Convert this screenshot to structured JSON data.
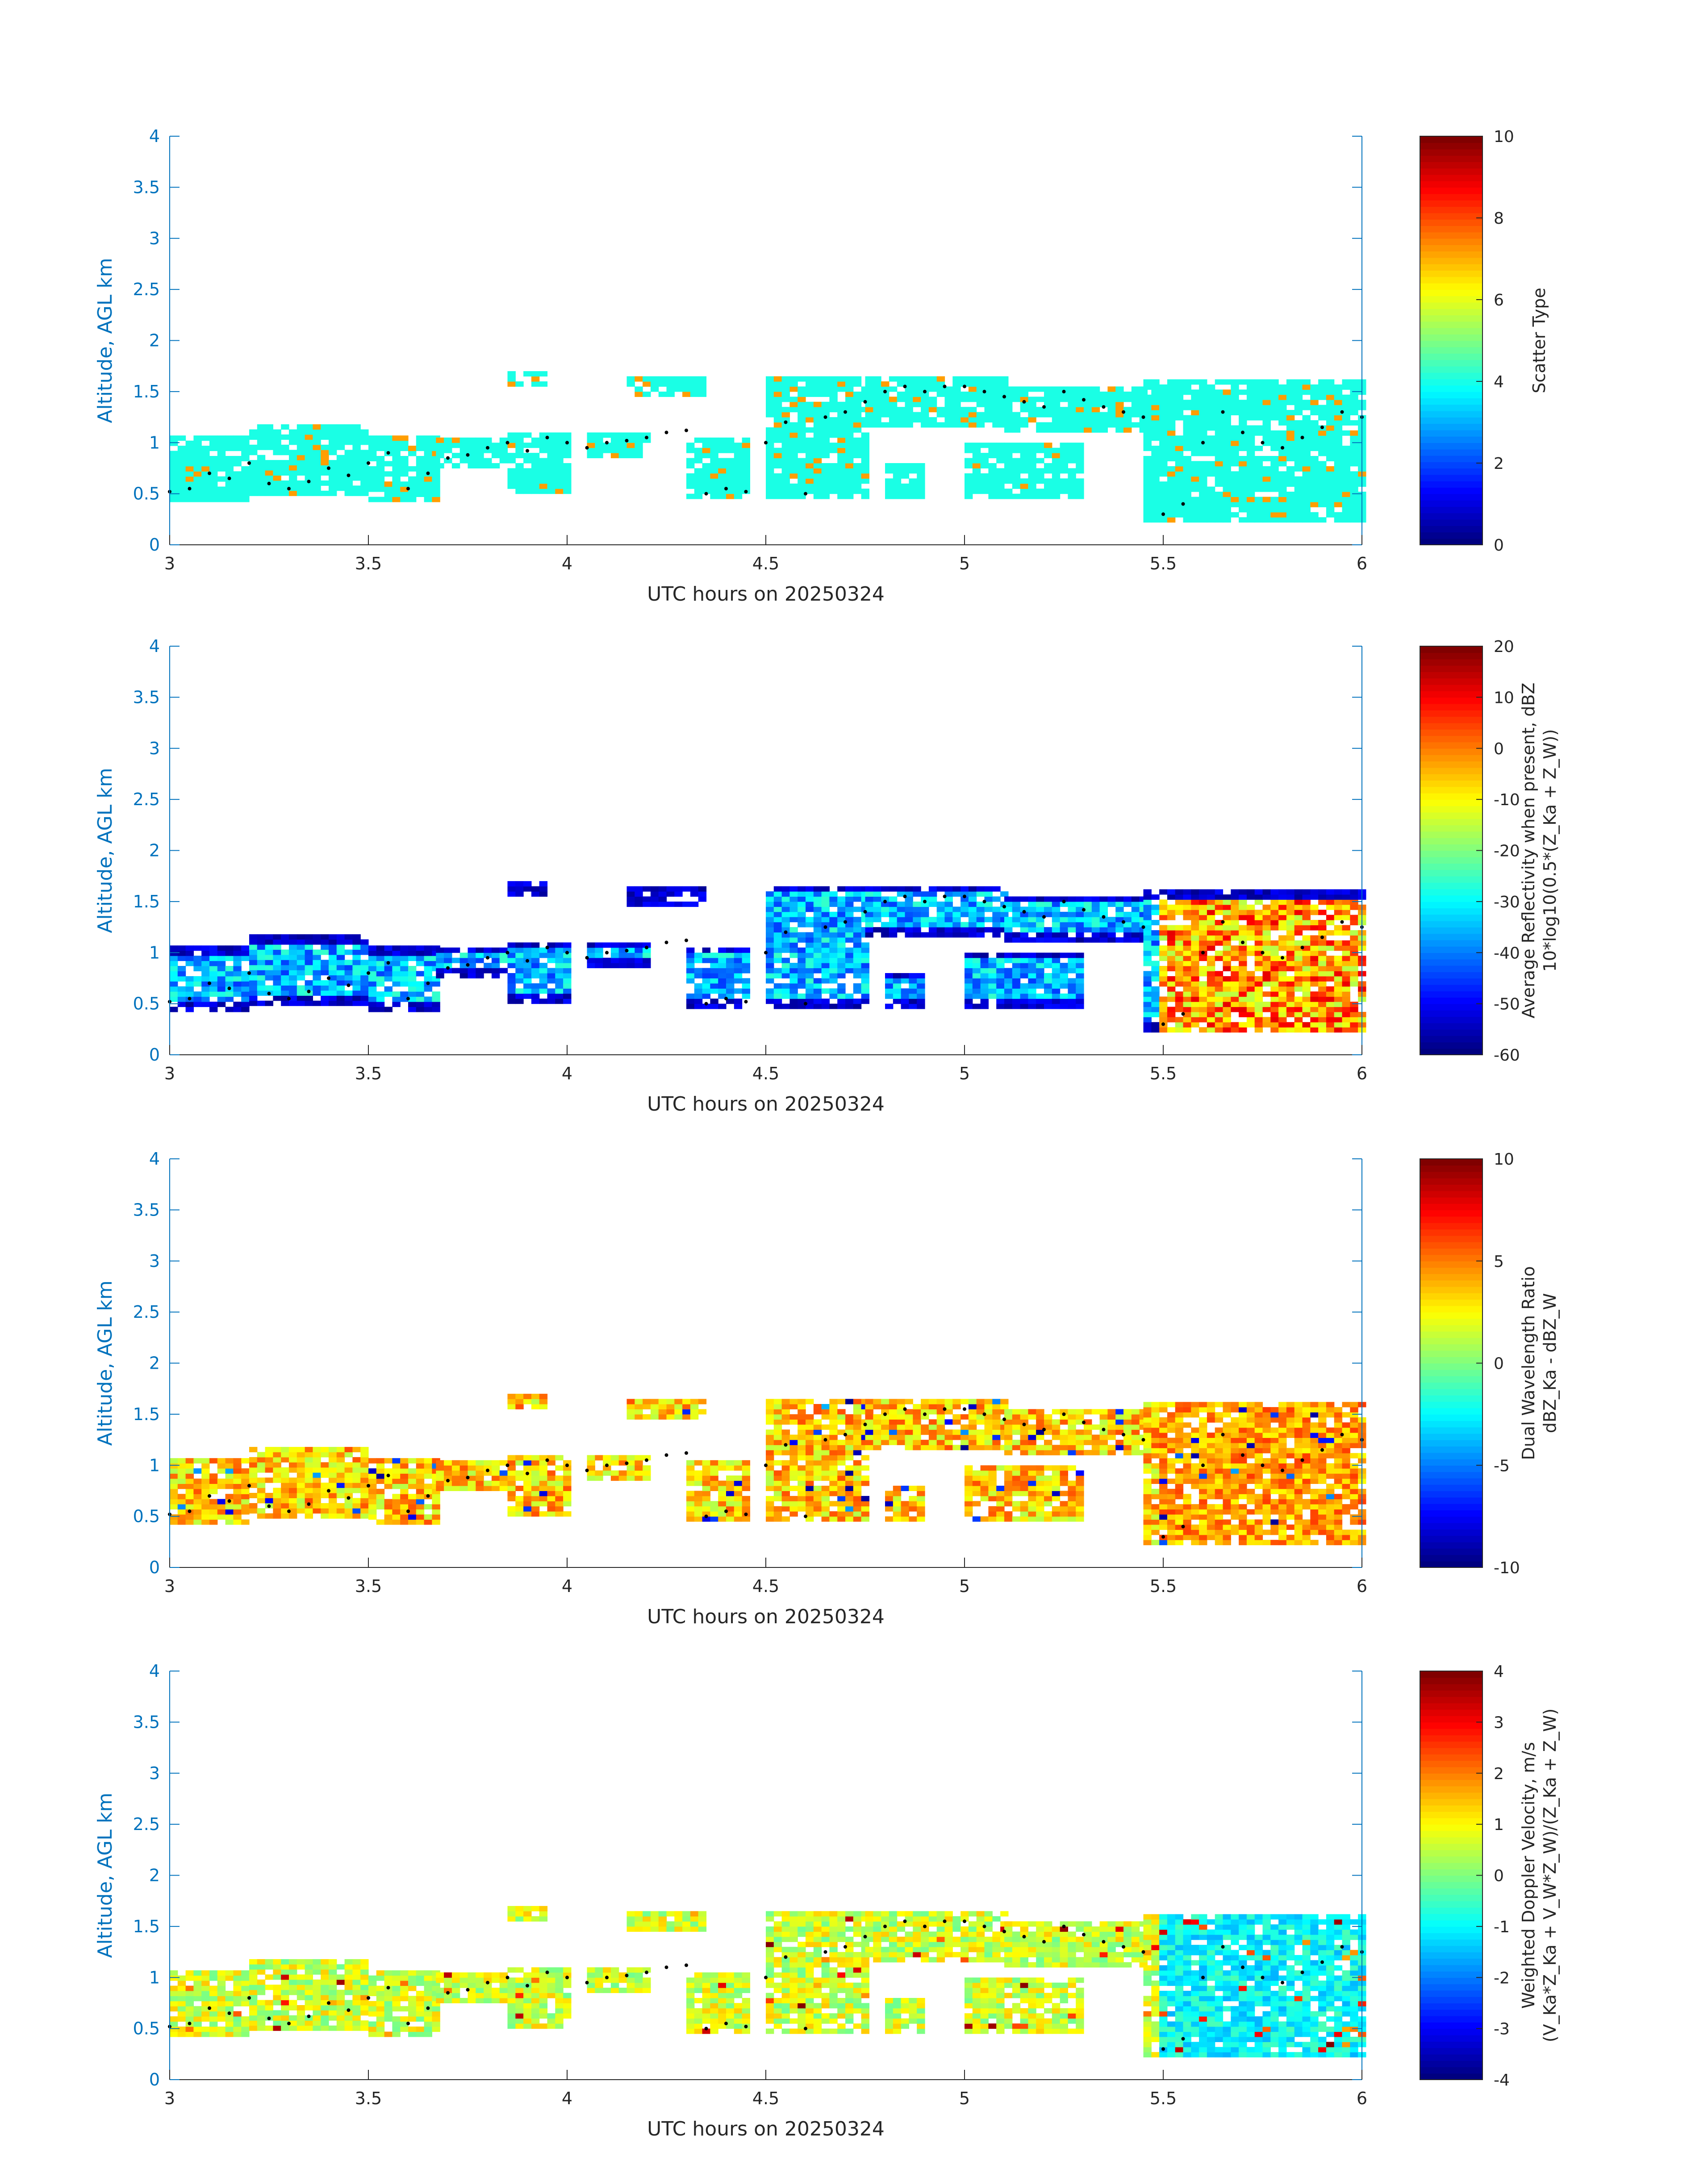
{
  "chart_data": [
    {
      "type": "heatmap",
      "xlabel": "UTC hours on 20250324",
      "ylabel": "Altitude, AGL km",
      "xlim": [
        3,
        6
      ],
      "ylim": [
        0,
        4
      ],
      "xticks": [
        "3",
        "3.5",
        "4",
        "4.5",
        "5",
        "5.5",
        "6"
      ],
      "yticks": [
        "0",
        "0.5",
        "1",
        "1.5",
        "2",
        "2.5",
        "3",
        "3.5",
        "4"
      ],
      "colorbar": {
        "label_lines": [
          "Scatter Type"
        ],
        "limits": [
          0,
          10
        ],
        "ticks": [
          "0",
          "2",
          "4",
          "6",
          "8",
          "10"
        ],
        "colormap": "jet"
      },
      "field": "scatter_type",
      "overlay": "cloud-base points (black dots)"
    },
    {
      "type": "heatmap",
      "xlabel": "UTC hours on 20250324",
      "ylabel": "Altitude, AGL km",
      "xlim": [
        3,
        6
      ],
      "ylim": [
        0,
        4
      ],
      "xticks": [
        "3",
        "3.5",
        "4",
        "4.5",
        "5",
        "5.5",
        "6"
      ],
      "yticks": [
        "0",
        "0.5",
        "1",
        "1.5",
        "2",
        "2.5",
        "3",
        "3.5",
        "4"
      ],
      "colorbar": {
        "label_lines": [
          "Average Reflectivity when present, dBZ",
          "10*log10(0.5*(Z_Ka + Z_W))"
        ],
        "limits": [
          -60,
          20
        ],
        "ticks": [
          "-60",
          "-50",
          "-40",
          "-30",
          "-20",
          "-10",
          "0",
          "10",
          "20"
        ],
        "colormap": "jet"
      },
      "field": "avg_reflectivity",
      "overlay": "cloud-base points (black dots)"
    },
    {
      "type": "heatmap",
      "xlabel": "UTC hours on 20250324",
      "ylabel": "Altitude, AGL km",
      "xlim": [
        3,
        6
      ],
      "ylim": [
        0,
        4
      ],
      "xticks": [
        "3",
        "3.5",
        "4",
        "4.5",
        "5",
        "5.5",
        "6"
      ],
      "yticks": [
        "0",
        "0.5",
        "1",
        "1.5",
        "2",
        "2.5",
        "3",
        "3.5",
        "4"
      ],
      "colorbar": {
        "label_lines": [
          "Dual Wavelength Ratio",
          "dBZ_Ka - dBZ_W"
        ],
        "limits": [
          -10,
          10
        ],
        "ticks": [
          "-10",
          "-5",
          "0",
          "5",
          "10"
        ],
        "colormap": "jet"
      },
      "field": "dwr",
      "overlay": "cloud-base points (black dots)"
    },
    {
      "type": "heatmap",
      "xlabel": "UTC hours on 20250324",
      "ylabel": "Altitude, AGL km",
      "xlim": [
        3,
        6
      ],
      "ylim": [
        0,
        4
      ],
      "xticks": [
        "3",
        "3.5",
        "4",
        "4.5",
        "5",
        "5.5",
        "6"
      ],
      "yticks": [
        "0",
        "0.5",
        "1",
        "1.5",
        "2",
        "2.5",
        "3",
        "3.5",
        "4"
      ],
      "colorbar": {
        "label_lines": [
          "Weighted Doppler Velocity, m/s",
          "(V_Ka*Z_Ka + V_W*Z_W)/(Z_Ka + Z_W)"
        ],
        "limits": [
          -4,
          4
        ],
        "ticks": [
          "-4",
          "-3",
          "-2",
          "-1",
          "0",
          "1",
          "2",
          "3",
          "4"
        ],
        "colormap": "jet"
      },
      "field": "doppler_velocity",
      "overlay": "cloud-base points (black dots)"
    }
  ],
  "echo_regions": [
    {
      "t0": 3.0,
      "t1": 3.2,
      "z0": 0.42,
      "z1": 1.05
    },
    {
      "t0": 3.2,
      "t1": 3.5,
      "z0": 0.48,
      "z1": 1.15
    },
    {
      "t0": 3.5,
      "t1": 3.67,
      "z0": 0.42,
      "z1": 1.05
    },
    {
      "t0": 3.67,
      "t1": 3.85,
      "z0": 0.75,
      "z1": 1.05
    },
    {
      "t0": 3.85,
      "t1": 4.0,
      "z0": 0.5,
      "z1": 1.1
    },
    {
      "t0": 3.85,
      "t1": 3.95,
      "z0": 1.55,
      "z1": 1.68
    },
    {
      "t0": 4.05,
      "t1": 4.2,
      "z0": 0.85,
      "z1": 1.1
    },
    {
      "t0": 4.15,
      "t1": 4.35,
      "z0": 1.45,
      "z1": 1.62
    },
    {
      "t0": 4.3,
      "t1": 4.45,
      "z0": 0.45,
      "z1": 1.05
    },
    {
      "t0": 4.5,
      "t1": 4.75,
      "z0": 0.45,
      "z1": 1.65
    },
    {
      "t0": 4.75,
      "t1": 5.1,
      "z0": 1.15,
      "z1": 1.65
    },
    {
      "t0": 4.8,
      "t1": 4.9,
      "z0": 0.45,
      "z1": 0.8
    },
    {
      "t0": 5.0,
      "t1": 5.3,
      "z0": 0.45,
      "z1": 1.0
    },
    {
      "t0": 5.1,
      "t1": 5.45,
      "z0": 1.1,
      "z1": 1.55
    },
    {
      "t0": 5.45,
      "t1": 6.0,
      "z0": 0.22,
      "z1": 1.6
    }
  ],
  "cloud_base_points": [
    [
      3.0,
      0.52
    ],
    [
      3.05,
      0.55
    ],
    [
      3.1,
      0.7
    ],
    [
      3.15,
      0.65
    ],
    [
      3.2,
      0.8
    ],
    [
      3.25,
      0.6
    ],
    [
      3.3,
      0.55
    ],
    [
      3.35,
      0.62
    ],
    [
      3.4,
      0.75
    ],
    [
      3.45,
      0.68
    ],
    [
      3.5,
      0.8
    ],
    [
      3.55,
      0.9
    ],
    [
      3.6,
      0.55
    ],
    [
      3.65,
      0.7
    ],
    [
      3.7,
      0.85
    ],
    [
      3.75,
      0.88
    ],
    [
      3.8,
      0.95
    ],
    [
      3.85,
      1.0
    ],
    [
      3.9,
      0.92
    ],
    [
      3.95,
      1.05
    ],
    [
      4.0,
      1.0
    ],
    [
      4.05,
      0.95
    ],
    [
      4.1,
      1.0
    ],
    [
      4.15,
      1.02
    ],
    [
      4.2,
      1.05
    ],
    [
      4.25,
      1.1
    ],
    [
      4.3,
      1.12
    ],
    [
      4.35,
      0.5
    ],
    [
      4.4,
      0.55
    ],
    [
      4.45,
      0.52
    ],
    [
      4.5,
      1.0
    ],
    [
      4.55,
      1.2
    ],
    [
      4.6,
      0.5
    ],
    [
      4.65,
      1.25
    ],
    [
      4.7,
      1.3
    ],
    [
      4.75,
      1.4
    ],
    [
      4.8,
      1.5
    ],
    [
      4.85,
      1.55
    ],
    [
      4.9,
      1.5
    ],
    [
      4.95,
      1.55
    ],
    [
      5.0,
      1.55
    ],
    [
      5.05,
      1.5
    ],
    [
      5.1,
      1.45
    ],
    [
      5.15,
      1.4
    ],
    [
      5.2,
      1.35
    ],
    [
      5.25,
      1.5
    ],
    [
      5.3,
      1.42
    ],
    [
      5.35,
      1.35
    ],
    [
      5.4,
      1.3
    ],
    [
      5.45,
      1.25
    ],
    [
      5.5,
      0.3
    ],
    [
      5.55,
      0.4
    ],
    [
      5.6,
      1.0
    ],
    [
      5.65,
      1.3
    ],
    [
      5.7,
      1.1
    ],
    [
      5.75,
      1.0
    ],
    [
      5.8,
      0.95
    ],
    [
      5.85,
      1.05
    ],
    [
      5.9,
      1.15
    ],
    [
      5.95,
      1.3
    ],
    [
      6.0,
      1.25
    ]
  ]
}
